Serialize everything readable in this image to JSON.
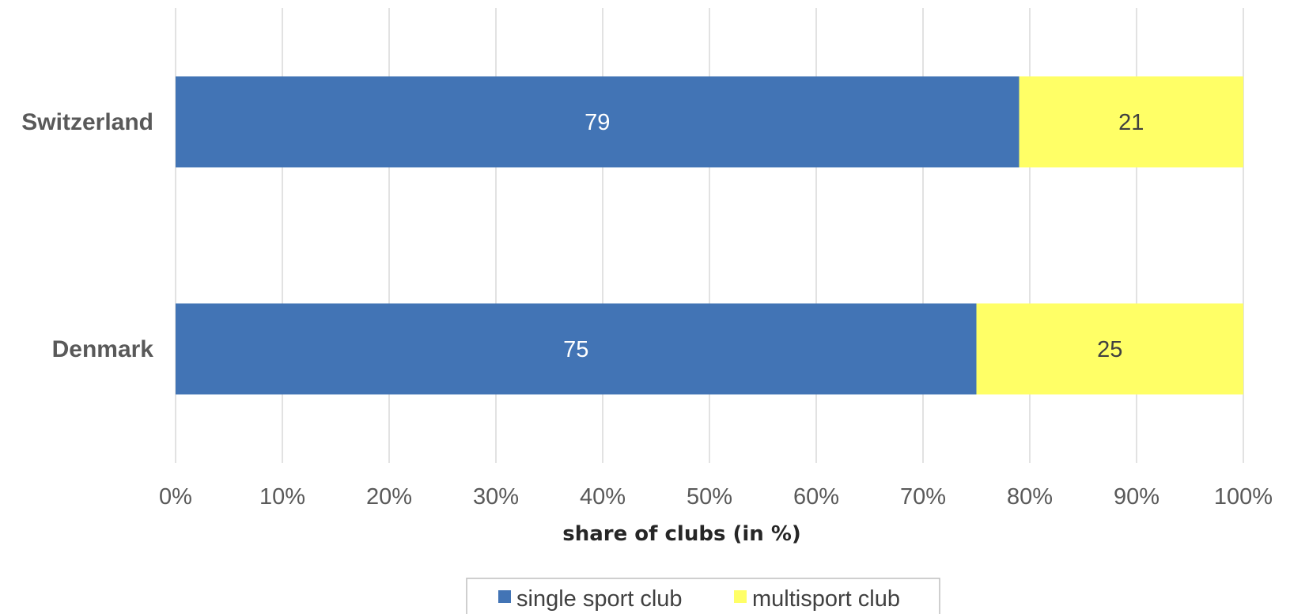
{
  "chart_data": {
    "type": "bar",
    "orientation": "horizontal",
    "stacked": true,
    "categories": [
      "Switzerland",
      "Denmark"
    ],
    "series": [
      {
        "name": "single sport club",
        "values": [
          79,
          75
        ],
        "color": "#4274b5"
      },
      {
        "name": "multisport club",
        "values": [
          21,
          25
        ],
        "color": "#ffff66"
      }
    ],
    "xlabel": "share of clubs (in %)",
    "xlim": [
      0,
      100
    ],
    "x_ticks": [
      "0%",
      "10%",
      "20%",
      "30%",
      "40%",
      "50%",
      "60%",
      "70%",
      "80%",
      "90%",
      "100%"
    ],
    "grid": true,
    "legend_position": "bottom"
  }
}
